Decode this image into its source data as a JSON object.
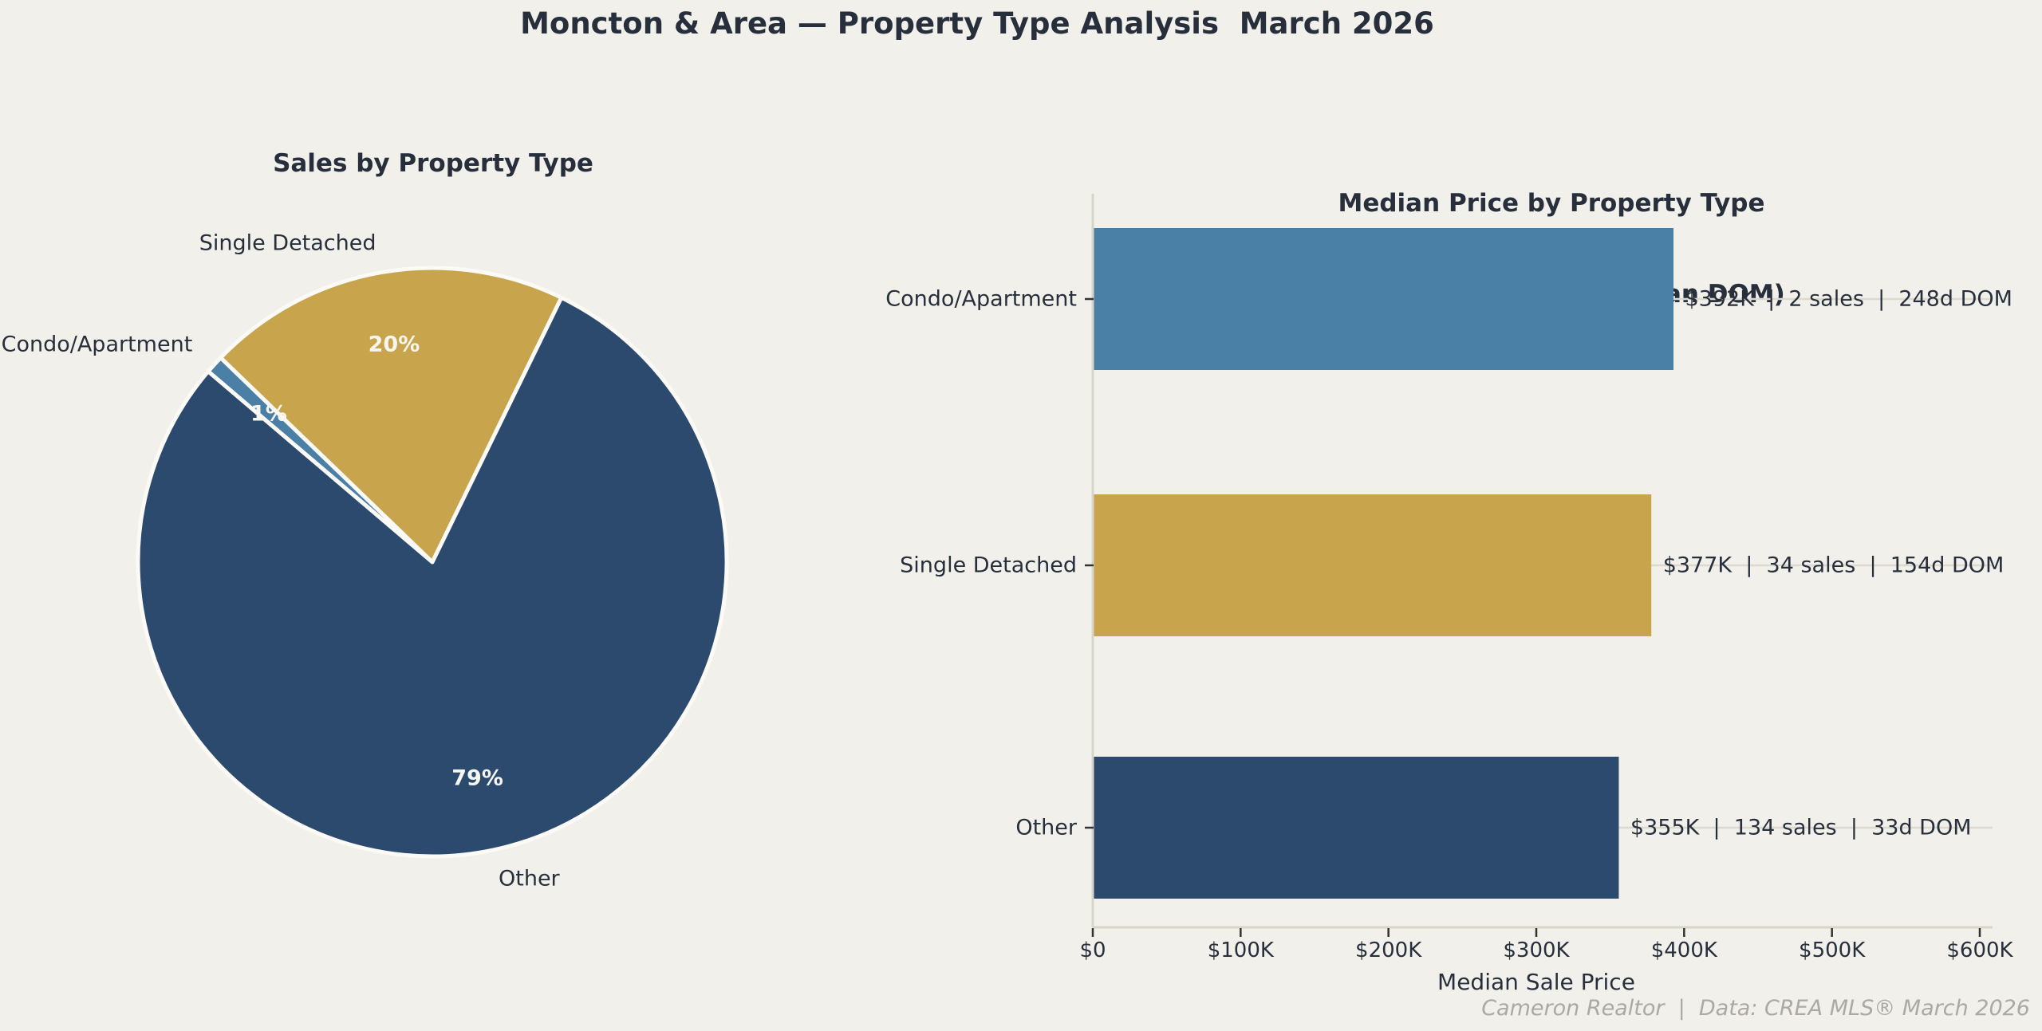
{
  "page": {
    "title": "Moncton & Area — Property Type Analysis  March 2026",
    "footer": "Cameron Realtor  |  Data: CREA MLS® March 2026",
    "background": "#F2F0EB",
    "text_color": "#262F3B"
  },
  "chart_data": [
    {
      "type": "pie",
      "title": "Sales by Property Type",
      "categories": [
        "Single Detached",
        "Condo/Apartment",
        "Other"
      ],
      "values_pct": [
        20,
        1,
        79
      ],
      "pct_labels": [
        "20%",
        "1%",
        "79%"
      ],
      "colors": [
        "#C8A44C",
        "#4A7FA6",
        "#2B4A6E"
      ],
      "start_angle_deg": 64,
      "direction": "counterclockwise",
      "slice_edge_color": "#FBFAF7",
      "pct_text_color": "#F7F5EF"
    },
    {
      "type": "bar",
      "orientation": "horizontal",
      "title_line1": "Median Price by Property Type",
      "title_line2": "(with sales count & median DOM)",
      "categories": [
        "Condo/Apartment",
        "Single Detached",
        "Other"
      ],
      "median_price_k": [
        392,
        377,
        355
      ],
      "sales_count": [
        2,
        34,
        134
      ],
      "median_dom_days": [
        248,
        154,
        33
      ],
      "annotations": [
        "$392K  |  2 sales  |  248d DOM",
        "$377K  |  34 sales  |  154d DOM",
        "$355K  |  134 sales  |  33d DOM"
      ],
      "colors": [
        "#4A7FA6",
        "#C8A44C",
        "#2B4A6E"
      ],
      "xlabel": "Median Sale Price",
      "xlim_k": [
        0,
        600
      ],
      "x_tick_values_k": [
        0,
        100,
        200,
        300,
        400,
        500,
        600
      ],
      "x_tick_labels": [
        "$0",
        "$100K",
        "$200K",
        "$300K",
        "$400K",
        "$500K",
        "$600K"
      ],
      "grid": "horizontal-category-lines",
      "grid_color": "#DDD9CF",
      "axis_color": "#D8D4C9",
      "tick_color": "#333333"
    }
  ]
}
